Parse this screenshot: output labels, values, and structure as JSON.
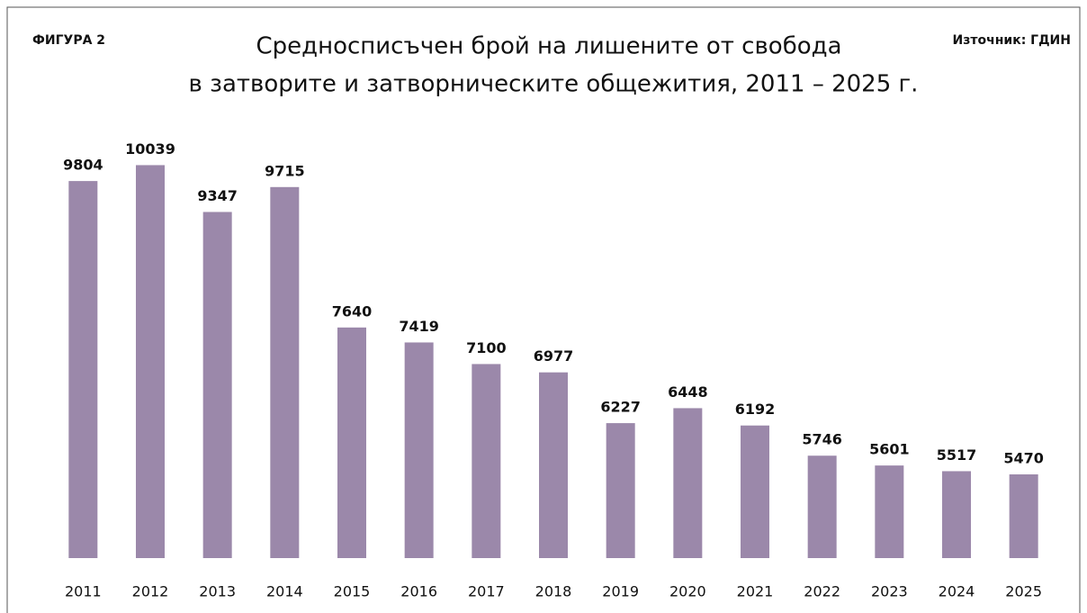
{
  "chart_data": {
    "type": "bar",
    "figure_label": "ФИГУРА 2",
    "source": "Източник: ГДИН",
    "title": [
      "Средносписъчен брой на лишените от свобода",
      "в затворите и затворническите общежития, 2011 – 2025 г."
    ],
    "categories": [
      "2011",
      "2012",
      "2013",
      "2014",
      "2015",
      "2016",
      "2017",
      "2018",
      "2019",
      "2020",
      "2021",
      "2022",
      "2023",
      "2024",
      "2025"
    ],
    "values": [
      9804,
      10039,
      9347,
      9715,
      7640,
      7419,
      7100,
      6977,
      6227,
      6448,
      6192,
      5746,
      5601,
      5517,
      5470
    ],
    "color": "#9b88aa",
    "ylim": [
      4233,
      12000
    ]
  }
}
